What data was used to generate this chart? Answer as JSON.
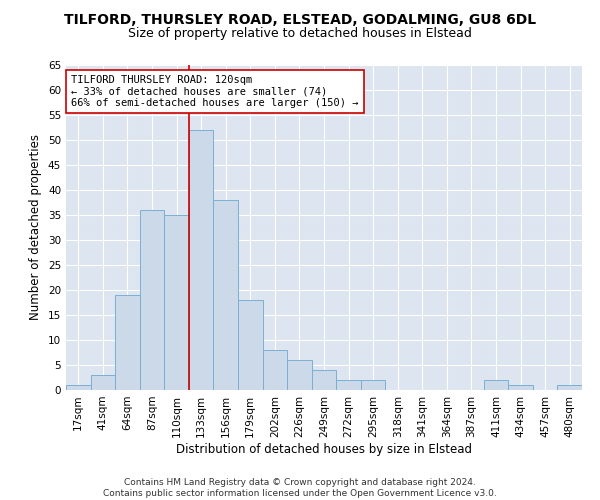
{
  "title": "TILFORD, THURSLEY ROAD, ELSTEAD, GODALMING, GU8 6DL",
  "subtitle": "Size of property relative to detached houses in Elstead",
  "xlabel": "Distribution of detached houses by size in Elstead",
  "ylabel": "Number of detached properties",
  "bar_color": "#ccd9e8",
  "bar_edge_color": "#7aafd4",
  "background_color": "#dde5f0",
  "grid_color": "#ffffff",
  "categories": [
    "17sqm",
    "41sqm",
    "64sqm",
    "87sqm",
    "110sqm",
    "133sqm",
    "156sqm",
    "179sqm",
    "202sqm",
    "226sqm",
    "249sqm",
    "272sqm",
    "295sqm",
    "318sqm",
    "341sqm",
    "364sqm",
    "387sqm",
    "411sqm",
    "434sqm",
    "457sqm",
    "480sqm"
  ],
  "values": [
    1,
    3,
    19,
    36,
    35,
    52,
    38,
    18,
    8,
    6,
    4,
    2,
    2,
    0,
    0,
    0,
    0,
    2,
    1,
    0,
    1
  ],
  "vline_x": 4.5,
  "vline_color": "#cc0000",
  "annotation_text": "TILFORD THURSLEY ROAD: 120sqm\n← 33% of detached houses are smaller (74)\n66% of semi-detached houses are larger (150) →",
  "ylim": [
    0,
    65
  ],
  "yticks": [
    0,
    5,
    10,
    15,
    20,
    25,
    30,
    35,
    40,
    45,
    50,
    55,
    60,
    65
  ],
  "footnote": "Contains HM Land Registry data © Crown copyright and database right 2024.\nContains public sector information licensed under the Open Government Licence v3.0.",
  "title_fontsize": 10,
  "subtitle_fontsize": 9,
  "xlabel_fontsize": 8.5,
  "ylabel_fontsize": 8.5,
  "tick_fontsize": 7.5,
  "annotation_fontsize": 7.5,
  "footnote_fontsize": 6.5
}
